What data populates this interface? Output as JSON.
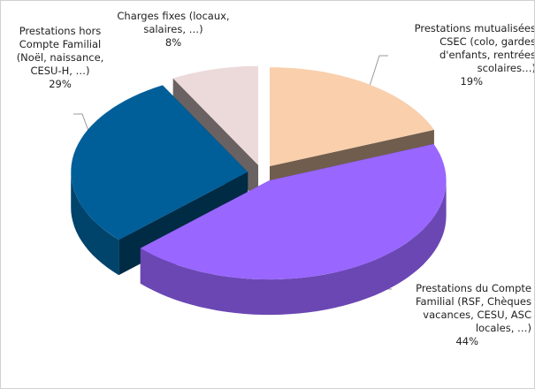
{
  "chart_data": {
    "type": "pie3d",
    "categories": [
      "Prestations mutualisées\nCSEC (colo, gardes\nd'enfants, rentrées\nscolaires…)",
      "Prestations du Compte\nFamilial (RSF, Chèques\nvacances, CESU, ASC\nlocales, …)",
      "Prestations hors\nCompte Familial\n(Noël, naissance,\nCESU-H, …)",
      "Charges fixes (locaux,\nsalaires, …)"
    ],
    "values": [
      19,
      44,
      29,
      8
    ],
    "value_labels": [
      "19%",
      "44%",
      "29%",
      "8%"
    ],
    "colors": [
      "#f9cfac",
      "#9966ff",
      "#005f99",
      "#ecdada"
    ]
  }
}
